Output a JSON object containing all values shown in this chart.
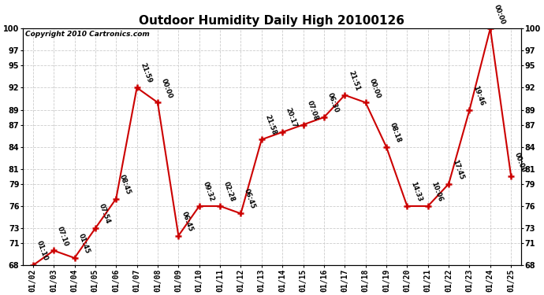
{
  "title": "Outdoor Humidity Daily High 20100126",
  "copyright": "Copyright 2010 Cartronics.com",
  "x_labels": [
    "01/02",
    "01/03",
    "01/04",
    "01/05",
    "01/06",
    "01/07",
    "01/08",
    "01/09",
    "01/10",
    "01/11",
    "01/12",
    "01/13",
    "01/14",
    "01/15",
    "01/16",
    "01/17",
    "01/18",
    "01/19",
    "01/20",
    "01/21",
    "01/22",
    "01/23",
    "01/24",
    "01/25"
  ],
  "y_values": [
    68,
    70,
    69,
    73,
    77,
    92,
    90,
    72,
    76,
    76,
    75,
    85,
    86,
    87,
    88,
    91,
    90,
    84,
    76,
    76,
    79,
    89,
    100,
    80
  ],
  "point_labels": [
    "01:10",
    "07:10",
    "01:45",
    "07:54",
    "08:45",
    "21:59",
    "00:00",
    "06:45",
    "09:32",
    "02:28",
    "06:45",
    "21:58",
    "20:17",
    "07:08",
    "06:30",
    "21:51",
    "00:00",
    "08:18",
    "14:33",
    "10:06",
    "17:45",
    "19:46",
    "00:00",
    "00:00"
  ],
  "ylim_low": 68,
  "ylim_high": 100,
  "yticks": [
    68,
    71,
    73,
    76,
    79,
    81,
    84,
    87,
    89,
    92,
    95,
    97,
    100
  ],
  "line_color": "#cc0000",
  "bg_color": "#ffffff",
  "grid_color": "#cccccc",
  "title_fontsize": 11,
  "tick_fontsize": 7,
  "annot_fontsize": 6,
  "copyright_fontsize": 6.5
}
